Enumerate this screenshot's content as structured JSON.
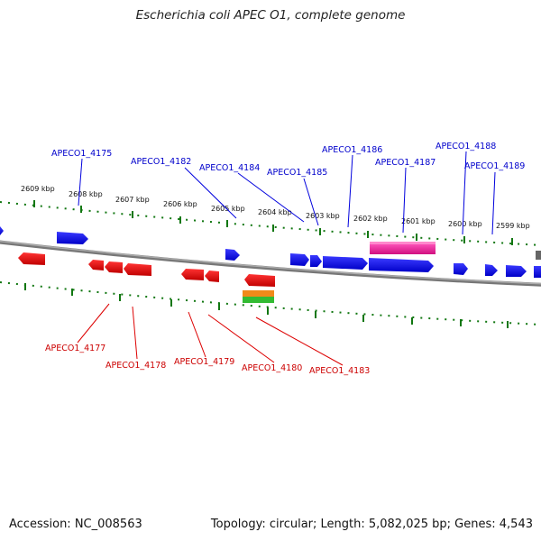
{
  "title": "Escherichia coli APEC O1, complete genome",
  "accession": "Accession: NC_008563",
  "summary": "Topology: circular; Length: 5,082,025 bp; Genes: 4,543",
  "kbp_labels": [
    "2609 kbp",
    "2608 kbp",
    "2607 kbp",
    "2606 kbp",
    "2605 kbp",
    "2604 kbp",
    "2603 kbp",
    "2602 kbp",
    "2601 kbp",
    "2600 kbp",
    "2599 kbp"
  ],
  "top_gene_labels": [
    "APECO1_4175",
    "APECO1_4182",
    "APECO1_4184",
    "APECO1_4185",
    "APECO1_4186",
    "APECO1_4187",
    "APECO1_4188",
    "APECO1_4189"
  ],
  "bottom_gene_labels": [
    "APECO1_4177",
    "APECO1_4178",
    "APECO1_4179",
    "APECO1_4180",
    "APECO1_4183"
  ],
  "colors": {
    "forward_gene": "#0000ee",
    "reverse_gene": "#ee0000",
    "highlight_gene": "#ee2299",
    "top_label": "#0000cc",
    "bottom_label": "#cc0000",
    "tick": "#006600",
    "backbone": "#808080"
  }
}
